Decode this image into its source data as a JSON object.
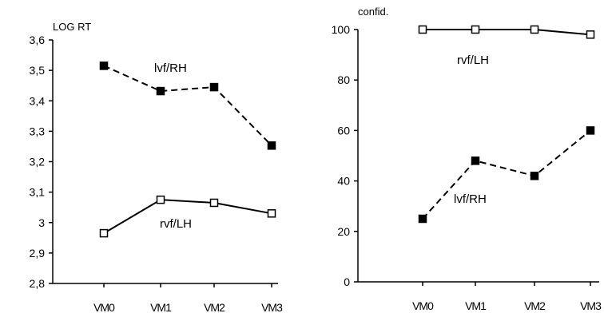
{
  "chart_data": [
    {
      "type": "line",
      "title": "",
      "ylabel": "LOG RT",
      "xlabel": "",
      "categories": [
        "VM0",
        "VM1",
        "VM2",
        "VM3"
      ],
      "ylim": [
        2.8,
        3.6
      ],
      "yticks": [
        2.8,
        2.9,
        3.0,
        3.1,
        3.2,
        3.3,
        3.4,
        3.5,
        3.6
      ],
      "ytick_labels": [
        "2,8",
        "2,9",
        "3",
        "3,1",
        "3,2",
        "3,3",
        "3,4",
        "3,5",
        "3,6"
      ],
      "grid": false,
      "series": [
        {
          "name": "lvf/RH",
          "values": [
            3.515,
            3.432,
            3.445,
            3.253
          ],
          "line": "dashed",
          "marker": "filled-square"
        },
        {
          "name": "rvf/LH",
          "values": [
            2.965,
            3.075,
            3.065,
            3.03
          ],
          "line": "solid",
          "marker": "open-square"
        }
      ]
    },
    {
      "type": "line",
      "title": "",
      "ylabel": "confid.",
      "xlabel": "",
      "categories": [
        "VM0",
        "VM1",
        "VM2",
        "VM3"
      ],
      "ylim": [
        0,
        100
      ],
      "yticks": [
        0,
        20,
        40,
        60,
        80,
        100
      ],
      "ytick_labels": [
        "0",
        "20",
        "40",
        "60",
        "80",
        "100"
      ],
      "grid": false,
      "series": [
        {
          "name": "rvf/LH",
          "values": [
            100,
            100,
            100,
            98
          ],
          "line": "solid",
          "marker": "open-square"
        },
        {
          "name": "lvf/RH",
          "values": [
            25,
            48,
            42,
            60
          ],
          "line": "dashed",
          "marker": "filled-square"
        }
      ]
    }
  ]
}
